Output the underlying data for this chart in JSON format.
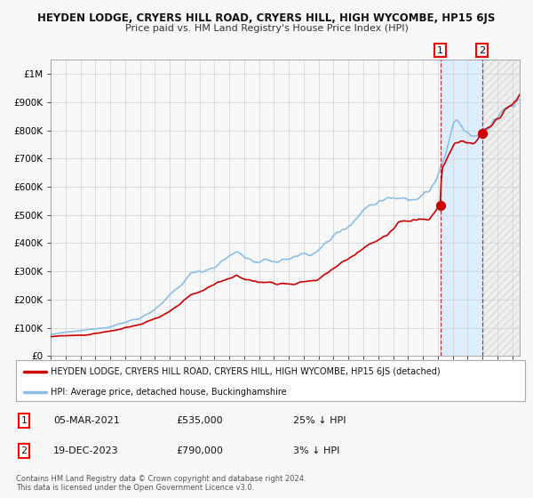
{
  "title": "HEYDEN LODGE, CRYERS HILL ROAD, CRYERS HILL, HIGH WYCOMBE, HP15 6JS",
  "subtitle": "Price paid vs. HM Land Registry's House Price Index (HPI)",
  "ylim": [
    0,
    1050000
  ],
  "xlim_start": 1995.0,
  "xlim_end": 2026.5,
  "hpi_color": "#8bbfe8",
  "price_color": "#cc0000",
  "background_color": "#f8f8f8",
  "grid_color": "#d0d0d0",
  "highlight_bg": "#ddeeff",
  "marker1_date_x": 2021.17,
  "marker1_y": 535000,
  "marker2_date_x": 2023.97,
  "marker2_y": 790000,
  "legend_label_red": "HEYDEN LODGE, CRYERS HILL ROAD, CRYERS HILL, HIGH WYCOMBE, HP15 6JS (detached)",
  "legend_label_blue": "HPI: Average price, detached house, Buckinghamshire",
  "note1_label": "1",
  "note1_date": "05-MAR-2021",
  "note1_price": "£535,000",
  "note1_pct": "25% ↓ HPI",
  "note2_label": "2",
  "note2_date": "19-DEC-2023",
  "note2_price": "£790,000",
  "note2_pct": "3% ↓ HPI",
  "copyright": "Contains HM Land Registry data © Crown copyright and database right 2024.\nThis data is licensed under the Open Government Licence v3.0."
}
